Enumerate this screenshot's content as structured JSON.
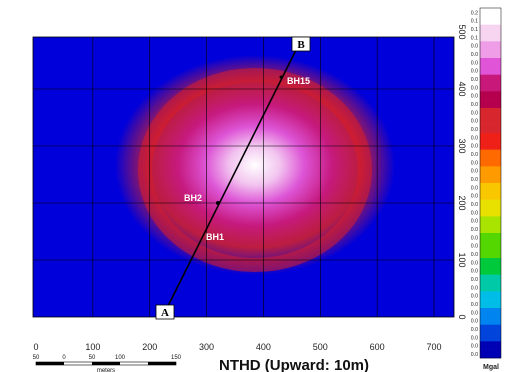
{
  "title": "NTHD (Upward: 10m)",
  "x_axis": {
    "ticks": [
      "0",
      "100",
      "200",
      "300",
      "400",
      "500",
      "600",
      "700"
    ]
  },
  "y_axis": {
    "ticks": [
      "0",
      "100",
      "200",
      "300",
      "400",
      "500"
    ]
  },
  "profile": {
    "start_label": "A",
    "end_label": "B"
  },
  "boreholes": [
    "BH15",
    "BH2",
    "BH1"
  ],
  "scale_bar": {
    "ticks": [
      "50",
      "0",
      "50",
      "100",
      "150"
    ],
    "unit": "meters"
  },
  "colorbar": {
    "unit": "Mgal",
    "labels": [
      "0.2",
      "0.1",
      "0.1",
      "0.1",
      "0.0",
      "0.0",
      "0.0",
      "0.0",
      "0.0",
      "0.0",
      "0.0",
      "0.0",
      "0.0",
      "0.0",
      "0.0",
      "0.0",
      "0.0",
      "0.0",
      "0.0",
      "0.0",
      "0.0",
      "0.0",
      "0.0",
      "0.0",
      "0.0",
      "0.0",
      "0.0",
      "0.0",
      "0.0",
      "0.0",
      "0.0",
      "0.0",
      "0.0",
      "0.0",
      "0.0",
      "0.0",
      "0.0",
      "0.0",
      "0.0",
      "0.0",
      "0.0",
      "0.0"
    ],
    "colors_top_to_bottom": [
      "#ffffff",
      "#f7d4f0",
      "#ee9de6",
      "#e055d8",
      "#c8187a",
      "#b5004e",
      "#d8262f",
      "#ee2018",
      "#ff6a00",
      "#ff9b00",
      "#f9c700",
      "#e8e100",
      "#a9e400",
      "#54d600",
      "#00c93c",
      "#00c9a8",
      "#00bde8",
      "#0084f0",
      "#0044dc",
      "#0000b5"
    ]
  },
  "colors": {
    "frame": "#000000",
    "grid": "#000000",
    "profile_line": "#000000"
  }
}
